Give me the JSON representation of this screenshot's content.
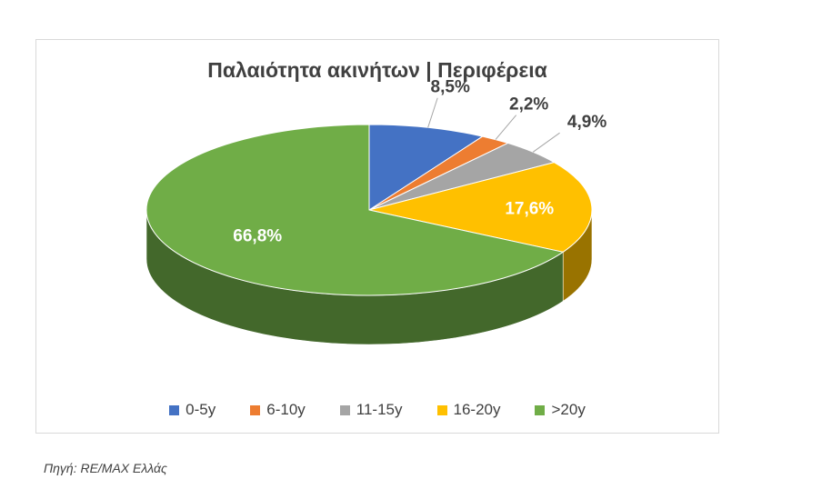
{
  "chart_data": {
    "type": "pie",
    "title": "Παλαιότητα ακινήτων | Περιφέρεια",
    "categories": [
      "0-5y",
      "6-10y",
      "11-15y",
      "16-20y",
      ">20y"
    ],
    "values": [
      8.5,
      2.2,
      4.9,
      17.6,
      66.8
    ],
    "labels": [
      "8,5%",
      "2,2%",
      "4,9%",
      "17,6%",
      "66,8%"
    ],
    "colors": [
      "#4472C4",
      "#ED7D31",
      "#A5A5A5",
      "#FFC000",
      "#70AD47"
    ],
    "legend_position": "bottom",
    "style": "3d"
  },
  "source": "Πηγή: RE/MAX Ελλάς"
}
